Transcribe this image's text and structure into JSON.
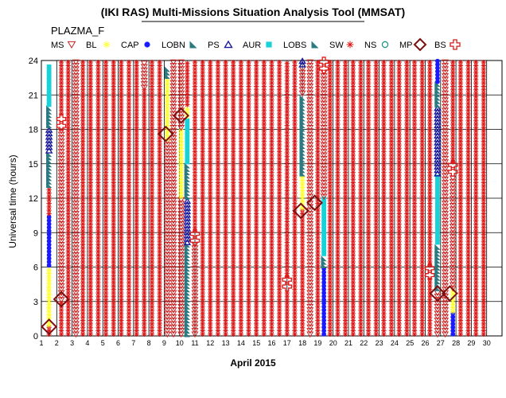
{
  "title": "(IKI RAS) Multi-Missions Situation Analysis Tool (MMSAT)",
  "mission": "PLAZMA_F",
  "chart_data": {
    "type": "scatter",
    "xlabel": "April 2015",
    "ylabel": "Universal time (hours)",
    "xlim": [
      1,
      31
    ],
    "ylim": [
      0,
      24
    ],
    "x_ticks": [
      "1",
      "2",
      "3",
      "4",
      "5",
      "6",
      "7",
      "8",
      "9",
      "10",
      "11",
      "12",
      "13",
      "14",
      "15",
      "16",
      "17",
      "18",
      "19",
      "20",
      "21",
      "22",
      "23",
      "24",
      "25",
      "26",
      "27",
      "28",
      "29",
      "30"
    ],
    "y_ticks": [
      "0",
      "3",
      "6",
      "9",
      "12",
      "15",
      "18",
      "21",
      "24"
    ],
    "grid": true,
    "legend": [
      {
        "label": "MS",
        "marker": "triangle-down-open",
        "color": "#cc2020"
      },
      {
        "label": "BL",
        "marker": "asterisk",
        "color": "#ffff33"
      },
      {
        "label": "CAP",
        "marker": "circle-filled",
        "color": "#1a1aff"
      },
      {
        "label": "LOBN",
        "marker": "wedge",
        "color": "#2a7a80"
      },
      {
        "label": "PS",
        "marker": "triangle-up-open",
        "color": "#1a1a9a"
      },
      {
        "label": "AUR",
        "marker": "square-filled",
        "color": "#19d2d8"
      },
      {
        "label": "LOBS",
        "marker": "wedge",
        "color": "#2a7a80"
      },
      {
        "label": "SW",
        "marker": "asterisk",
        "color": "#dd1a1a"
      },
      {
        "label": "NS",
        "marker": "circle-open",
        "color": "#199080"
      },
      {
        "label": "MP",
        "marker": "diamond-open",
        "color": "#7a1010"
      },
      {
        "label": "BS",
        "marker": "cross-open",
        "color": "#dd1a1a"
      }
    ],
    "series": [
      {
        "x": 1.5,
        "segments": [
          [
            0,
            0.8,
            "SW"
          ],
          [
            0.8,
            6,
            "BL"
          ],
          [
            6,
            10.5,
            "CAP"
          ],
          [
            10.5,
            13,
            "SW"
          ],
          [
            13,
            16,
            "LOBN"
          ],
          [
            16,
            18.2,
            "PS"
          ],
          [
            18.2,
            20,
            "LOBN"
          ],
          [
            20,
            23.5,
            "AUR"
          ]
        ]
      },
      {
        "x": 2.3,
        "segments": [
          [
            0,
            3,
            "SW"
          ],
          [
            3,
            18,
            "MS"
          ],
          [
            18,
            19.2,
            "BS"
          ],
          [
            19.2,
            24,
            "SW"
          ]
        ]
      },
      {
        "x": 2.75,
        "segments": [
          [
            0,
            24,
            "SW"
          ]
        ]
      },
      {
        "x": 3.25,
        "segments": [
          [
            0,
            24,
            "MS"
          ]
        ]
      },
      {
        "x": 3.7,
        "segments": [
          [
            0,
            24,
            "SW"
          ]
        ]
      },
      {
        "x": 4.2,
        "segments": [
          [
            0,
            24,
            "SW"
          ]
        ]
      },
      {
        "x": 4.7,
        "segments": [
          [
            0,
            24,
            "SW"
          ]
        ]
      },
      {
        "x": 5.2,
        "segments": [
          [
            0,
            24,
            "SW"
          ]
        ]
      },
      {
        "x": 5.7,
        "segments": [
          [
            0,
            24,
            "SW"
          ]
        ]
      },
      {
        "x": 6.2,
        "segments": [
          [
            0,
            24,
            "SW"
          ]
        ]
      },
      {
        "x": 6.7,
        "segments": [
          [
            0,
            24,
            "SW"
          ]
        ]
      },
      {
        "x": 7.2,
        "segments": [
          [
            0,
            24,
            "SW"
          ]
        ]
      },
      {
        "x": 7.7,
        "segments": [
          [
            0,
            21.5,
            "SW"
          ],
          [
            21.5,
            24,
            "MS"
          ]
        ]
      },
      {
        "x": 8.2,
        "segments": [
          [
            0,
            24,
            "SW"
          ]
        ]
      },
      {
        "x": 8.7,
        "segments": [
          [
            0,
            24,
            "SW"
          ]
        ]
      },
      {
        "x": 9.2,
        "segments": [
          [
            0,
            17,
            "MS"
          ],
          [
            17,
            22.5,
            "BL"
          ],
          [
            22.5,
            23.5,
            "LOBN"
          ]
        ]
      },
      {
        "x": 9.6,
        "segments": [
          [
            0,
            24,
            "MS"
          ]
        ]
      },
      {
        "x": 10.1,
        "segments": [
          [
            0,
            12,
            "MS"
          ],
          [
            12,
            18,
            "BL"
          ],
          [
            18,
            24,
            "MS"
          ]
        ]
      },
      {
        "x": 10.5,
        "segments": [
          [
            0,
            8,
            "LOBN"
          ],
          [
            8,
            12,
            "PS"
          ],
          [
            12,
            15,
            "LOBN"
          ],
          [
            15,
            19,
            "AUR"
          ],
          [
            19,
            20,
            "BL"
          ],
          [
            20,
            24,
            "SW"
          ]
        ]
      },
      {
        "x": 11.0,
        "segments": [
          [
            0,
            8,
            "MS"
          ],
          [
            8,
            9,
            "BS"
          ],
          [
            9,
            24,
            "SW"
          ]
        ]
      },
      {
        "x": 11.5,
        "segments": [
          [
            0,
            24,
            "SW"
          ]
        ]
      },
      {
        "x": 12.0,
        "segments": [
          [
            0,
            24,
            "SW"
          ]
        ]
      },
      {
        "x": 12.5,
        "segments": [
          [
            0,
            24,
            "SW"
          ]
        ]
      },
      {
        "x": 13.0,
        "segments": [
          [
            0,
            24,
            "SW"
          ]
        ]
      },
      {
        "x": 13.5,
        "segments": [
          [
            0,
            24,
            "SW"
          ]
        ]
      },
      {
        "x": 14.0,
        "segments": [
          [
            0,
            24,
            "SW"
          ]
        ]
      },
      {
        "x": 14.5,
        "segments": [
          [
            0,
            24,
            "SW"
          ]
        ]
      },
      {
        "x": 15.0,
        "segments": [
          [
            0,
            24,
            "SW"
          ]
        ]
      },
      {
        "x": 15.5,
        "segments": [
          [
            0,
            24,
            "SW"
          ]
        ]
      },
      {
        "x": 16.0,
        "segments": [
          [
            0,
            24,
            "SW"
          ]
        ]
      },
      {
        "x": 16.5,
        "segments": [
          [
            0,
            24,
            "SW"
          ]
        ]
      },
      {
        "x": 17.0,
        "segments": [
          [
            0,
            4,
            "SW"
          ],
          [
            4,
            5,
            "BS"
          ],
          [
            5,
            24,
            "SW"
          ]
        ]
      },
      {
        "x": 17.5,
        "segments": [
          [
            0,
            24,
            "SW"
          ]
        ]
      },
      {
        "x": 18.0,
        "segments": [
          [
            0,
            11,
            "SW"
          ],
          [
            11,
            14,
            "BL"
          ],
          [
            14,
            21,
            "LOBN"
          ],
          [
            21,
            23.5,
            "MS"
          ],
          [
            23.5,
            24,
            "PS"
          ]
        ]
      },
      {
        "x": 18.5,
        "segments": [
          [
            0,
            24,
            "MS"
          ]
        ]
      },
      {
        "x": 19.0,
        "segments": [
          [
            0,
            24,
            "SW"
          ]
        ]
      },
      {
        "x": 19.4,
        "segments": [
          [
            0,
            6,
            "CAP"
          ],
          [
            6,
            7,
            "LOBN"
          ],
          [
            7,
            12,
            "AUR"
          ],
          [
            12,
            23,
            "MS"
          ],
          [
            23,
            24,
            "BS"
          ]
        ]
      },
      {
        "x": 19.8,
        "segments": [
          [
            0,
            24,
            "SW"
          ]
        ]
      },
      {
        "x": 20.3,
        "segments": [
          [
            0,
            24,
            "SW"
          ]
        ]
      },
      {
        "x": 20.8,
        "segments": [
          [
            0,
            24,
            "SW"
          ]
        ]
      },
      {
        "x": 21.3,
        "segments": [
          [
            0,
            24,
            "SW"
          ]
        ]
      },
      {
        "x": 21.8,
        "segments": [
          [
            0,
            24,
            "SW"
          ]
        ]
      },
      {
        "x": 22.3,
        "segments": [
          [
            0,
            24,
            "SW"
          ]
        ]
      },
      {
        "x": 22.8,
        "segments": [
          [
            0,
            24,
            "SW"
          ]
        ]
      },
      {
        "x": 23.3,
        "segments": [
          [
            0,
            24,
            "SW"
          ]
        ]
      },
      {
        "x": 23.8,
        "segments": [
          [
            0,
            24,
            "SW"
          ]
        ]
      },
      {
        "x": 24.3,
        "segments": [
          [
            0,
            24,
            "SW"
          ]
        ]
      },
      {
        "x": 24.8,
        "segments": [
          [
            0,
            24,
            "SW"
          ]
        ]
      },
      {
        "x": 25.3,
        "segments": [
          [
            0,
            24,
            "SW"
          ]
        ]
      },
      {
        "x": 25.8,
        "segments": [
          [
            0,
            24,
            "SW"
          ]
        ]
      },
      {
        "x": 26.3,
        "segments": [
          [
            0,
            5,
            "SW"
          ],
          [
            5,
            6,
            "BS"
          ],
          [
            6,
            24,
            "SW"
          ]
        ]
      },
      {
        "x": 26.8,
        "segments": [
          [
            0,
            4,
            "MS"
          ],
          [
            4,
            8,
            "LOBN"
          ],
          [
            8,
            14,
            "AUR"
          ],
          [
            14,
            20,
            "PS"
          ],
          [
            20,
            22,
            "LOBN"
          ],
          [
            22,
            24,
            "CAP"
          ]
        ]
      },
      {
        "x": 27.3,
        "segments": [
          [
            0,
            24,
            "MS"
          ]
        ]
      },
      {
        "x": 27.8,
        "segments": [
          [
            0,
            2,
            "CAP"
          ],
          [
            2,
            4,
            "BL"
          ],
          [
            4,
            14,
            "MS"
          ],
          [
            14,
            15,
            "BS"
          ],
          [
            15,
            24,
            "SW"
          ]
        ]
      },
      {
        "x": 28.3,
        "segments": [
          [
            0,
            24,
            "SW"
          ]
        ]
      },
      {
        "x": 28.8,
        "segments": [
          [
            0,
            24,
            "SW"
          ]
        ]
      },
      {
        "x": 29.3,
        "segments": [
          [
            0,
            24,
            "SW"
          ]
        ]
      },
      {
        "x": 29.8,
        "segments": [
          [
            0,
            24,
            "SW"
          ]
        ]
      }
    ],
    "magnetopause_crossings": [
      [
        1.5,
        0.8
      ],
      [
        2.3,
        3.2
      ],
      [
        9.1,
        17.6
      ],
      [
        10.1,
        19.2
      ],
      [
        17.9,
        10.9
      ],
      [
        18.8,
        11.6
      ],
      [
        26.8,
        3.7
      ],
      [
        27.6,
        3.7
      ]
    ]
  }
}
